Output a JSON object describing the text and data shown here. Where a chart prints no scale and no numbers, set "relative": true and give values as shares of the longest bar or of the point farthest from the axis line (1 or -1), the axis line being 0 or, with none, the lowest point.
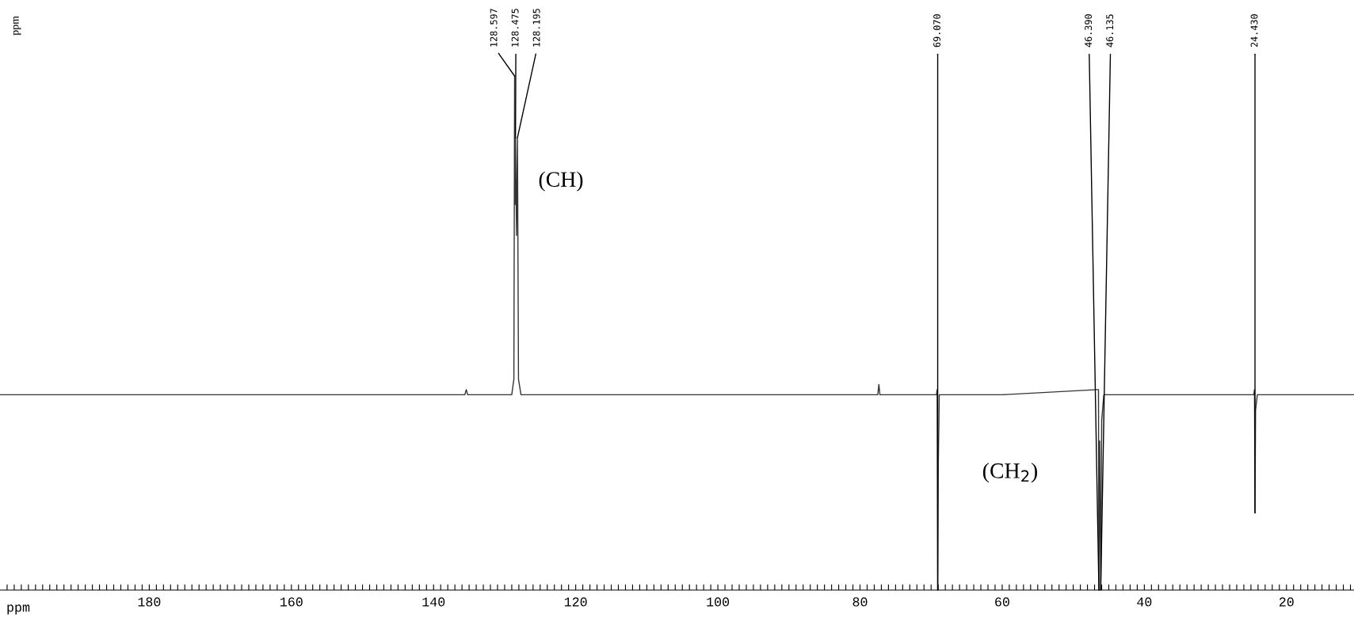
{
  "chart_data": {
    "type": "line",
    "relative": true,
    "xlabel": "ppm",
    "ylabel": "ppm",
    "x": [
      201,
      170,
      135.6,
      135.4,
      135.2,
      129.0,
      128.7,
      128.597,
      128.54,
      128.475,
      128.33,
      128.195,
      128.05,
      127.7,
      100,
      77.5,
      77.35,
      77.2,
      69.25,
      69.15,
      69.07,
      68.98,
      68.85,
      60,
      46.55,
      46.45,
      46.39,
      46.28,
      46.135,
      46.0,
      45.7,
      45.2,
      35,
      24.6,
      24.5,
      24.43,
      24.35,
      24.1,
      10.5
    ],
    "series": [
      {
        "color": "#333333",
        "values": [
          0.38,
          0.38,
          0.38,
          0.39,
          0.38,
          0.38,
          0.41,
          1.0,
          0.75,
          0.88,
          0.69,
          0.88,
          0.41,
          0.38,
          0.38,
          0.38,
          0.4,
          0.38,
          0.38,
          0.39,
          0,
          0.25,
          0.38,
          0.38,
          0.39,
          0.39,
          0,
          0.29,
          0,
          0.33,
          0.38,
          0.38,
          0.38,
          0.38,
          0.39,
          0.15,
          0.35,
          0.38,
          0.38
        ]
      }
    ],
    "xlim": [
      201,
      10.5
    ],
    "xticks": [
      180,
      160,
      140,
      120,
      100,
      80,
      60,
      40,
      20,
      {
        "value": 200,
        "label": null
      },
      {
        "value": 199,
        "label": null
      },
      {
        "value": 198,
        "label": null
      },
      {
        "value": 197,
        "label": null
      },
      {
        "value": 196,
        "label": null
      },
      {
        "value": 195,
        "label": null
      },
      {
        "value": 194,
        "label": null
      },
      {
        "value": 193,
        "label": null
      },
      {
        "value": 192,
        "label": null
      },
      {
        "value": 191,
        "label": null
      },
      {
        "value": 190,
        "label": null
      },
      {
        "value": 189,
        "label": null
      },
      {
        "value": 188,
        "label": null
      },
      {
        "value": 187,
        "label": null
      },
      {
        "value": 186,
        "label": null
      },
      {
        "value": 185,
        "label": null
      },
      {
        "value": 184,
        "label": null
      },
      {
        "value": 183,
        "label": null
      },
      {
        "value": 182,
        "label": null
      },
      {
        "value": 181,
        "label": null
      },
      {
        "value": 179,
        "label": null
      },
      {
        "value": 178,
        "label": null
      },
      {
        "value": 177,
        "label": null
      },
      {
        "value": 176,
        "label": null
      },
      {
        "value": 175,
        "label": null
      },
      {
        "value": 174,
        "label": null
      },
      {
        "value": 173,
        "label": null
      },
      {
        "value": 172,
        "label": null
      },
      {
        "value": 171,
        "label": null
      },
      {
        "value": 170,
        "label": null
      },
      {
        "value": 169,
        "label": null
      },
      {
        "value": 168,
        "label": null
      },
      {
        "value": 167,
        "label": null
      },
      {
        "value": 166,
        "label": null
      },
      {
        "value": 165,
        "label": null
      },
      {
        "value": 164,
        "label": null
      },
      {
        "value": 163,
        "label": null
      },
      {
        "value": 162,
        "label": null
      },
      {
        "value": 161,
        "label": null
      },
      {
        "value": 159,
        "label": null
      },
      {
        "value": 158,
        "label": null
      },
      {
        "value": 157,
        "label": null
      },
      {
        "value": 156,
        "label": null
      },
      {
        "value": 155,
        "label": null
      },
      {
        "value": 154,
        "label": null
      },
      {
        "value": 153,
        "label": null
      },
      {
        "value": 152,
        "label": null
      },
      {
        "value": 151,
        "label": null
      },
      {
        "value": 150,
        "label": null
      },
      {
        "value": 149,
        "label": null
      },
      {
        "value": 148,
        "label": null
      },
      {
        "value": 147,
        "label": null
      },
      {
        "value": 146,
        "label": null
      },
      {
        "value": 145,
        "label": null
      },
      {
        "value": 144,
        "label": null
      },
      {
        "value": 143,
        "label": null
      },
      {
        "value": 142,
        "label": null
      },
      {
        "value": 141,
        "label": null
      },
      {
        "value": 139,
        "label": null
      },
      {
        "value": 138,
        "label": null
      },
      {
        "value": 137,
        "label": null
      },
      {
        "value": 136,
        "label": null
      },
      {
        "value": 135,
        "label": null
      },
      {
        "value": 134,
        "label": null
      },
      {
        "value": 133,
        "label": null
      },
      {
        "value": 132,
        "label": null
      },
      {
        "value": 131,
        "label": null
      },
      {
        "value": 130,
        "label": null
      },
      {
        "value": 129,
        "label": null
      },
      {
        "value": 128,
        "label": null
      },
      {
        "value": 127,
        "label": null
      },
      {
        "value": 126,
        "label": null
      },
      {
        "value": 125,
        "label": null
      },
      {
        "value": 124,
        "label": null
      },
      {
        "value": 123,
        "label": null
      },
      {
        "value": 122,
        "label": null
      },
      {
        "value": 121,
        "label": null
      },
      {
        "value": 119,
        "label": null
      },
      {
        "value": 118,
        "label": null
      },
      {
        "value": 117,
        "label": null
      },
      {
        "value": 116,
        "label": null
      },
      {
        "value": 115,
        "label": null
      },
      {
        "value": 114,
        "label": null
      },
      {
        "value": 113,
        "label": null
      },
      {
        "value": 112,
        "label": null
      },
      {
        "value": 111,
        "label": null
      },
      {
        "value": 110,
        "label": null
      },
      {
        "value": 109,
        "label": null
      },
      {
        "value": 108,
        "label": null
      },
      {
        "value": 107,
        "label": null
      },
      {
        "value": 106,
        "label": null
      },
      {
        "value": 105,
        "label": null
      },
      {
        "value": 104,
        "label": null
      },
      {
        "value": 103,
        "label": null
      },
      {
        "value": 102,
        "label": null
      },
      {
        "value": 101,
        "label": null
      },
      {
        "value": 99,
        "label": null
      },
      {
        "value": 98,
        "label": null
      },
      {
        "value": 97,
        "label": null
      },
      {
        "value": 96,
        "label": null
      },
      {
        "value": 95,
        "label": null
      },
      {
        "value": 94,
        "label": null
      },
      {
        "value": 93,
        "label": null
      },
      {
        "value": 92,
        "label": null
      },
      {
        "value": 91,
        "label": null
      },
      {
        "value": 90,
        "label": null
      },
      {
        "value": 89,
        "label": null
      },
      {
        "value": 88,
        "label": null
      },
      {
        "value": 87,
        "label": null
      },
      {
        "value": 86,
        "label": null
      },
      {
        "value": 85,
        "label": null
      },
      {
        "value": 84,
        "label": null
      },
      {
        "value": 83,
        "label": null
      },
      {
        "value": 82,
        "label": null
      },
      {
        "value": 81,
        "label": null
      },
      {
        "value": 79,
        "label": null
      },
      {
        "value": 78,
        "label": null
      },
      {
        "value": 77,
        "label": null
      },
      {
        "value": 76,
        "label": null
      },
      {
        "value": 75,
        "label": null
      },
      {
        "value": 74,
        "label": null
      },
      {
        "value": 73,
        "label": null
      },
      {
        "value": 72,
        "label": null
      },
      {
        "value": 71,
        "label": null
      },
      {
        "value": 70,
        "label": null
      },
      {
        "value": 69,
        "label": null
      },
      {
        "value": 68,
        "label": null
      },
      {
        "value": 67,
        "label": null
      },
      {
        "value": 66,
        "label": null
      },
      {
        "value": 65,
        "label": null
      },
      {
        "value": 64,
        "label": null
      },
      {
        "value": 63,
        "label": null
      },
      {
        "value": 62,
        "label": null
      },
      {
        "value": 61,
        "label": null
      },
      {
        "value": 59,
        "label": null
      },
      {
        "value": 58,
        "label": null
      },
      {
        "value": 57,
        "label": null
      },
      {
        "value": 56,
        "label": null
      },
      {
        "value": 55,
        "label": null
      },
      {
        "value": 54,
        "label": null
      },
      {
        "value": 53,
        "label": null
      },
      {
        "value": 52,
        "label": null
      },
      {
        "value": 51,
        "label": null
      },
      {
        "value": 50,
        "label": null
      },
      {
        "value": 49,
        "label": null
      },
      {
        "value": 48,
        "label": null
      },
      {
        "value": 47,
        "label": null
      },
      {
        "value": 46,
        "label": null
      },
      {
        "value": 45,
        "label": null
      },
      {
        "value": 44,
        "label": null
      },
      {
        "value": 43,
        "label": null
      },
      {
        "value": 42,
        "label": null
      },
      {
        "value": 41,
        "label": null
      },
      {
        "value": 39,
        "label": null
      },
      {
        "value": 38,
        "label": null
      },
      {
        "value": 37,
        "label": null
      },
      {
        "value": 36,
        "label": null
      },
      {
        "value": 35,
        "label": null
      },
      {
        "value": 34,
        "label": null
      },
      {
        "value": 33,
        "label": null
      },
      {
        "value": 32,
        "label": null
      },
      {
        "value": 31,
        "label": null
      },
      {
        "value": 30,
        "label": null
      },
      {
        "value": 29,
        "label": null
      },
      {
        "value": 28,
        "label": null
      },
      {
        "value": 27,
        "label": null
      },
      {
        "value": 26,
        "label": null
      },
      {
        "value": 25,
        "label": null
      },
      {
        "value": 24,
        "label": null
      },
      {
        "value": 23,
        "label": null
      },
      {
        "value": 22,
        "label": null
      },
      {
        "value": 21,
        "label": null
      },
      {
        "value": 19,
        "label": null
      },
      {
        "value": 18,
        "label": null
      },
      {
        "value": 17,
        "label": null
      },
      {
        "value": 16,
        "label": null
      },
      {
        "value": 15,
        "label": null
      },
      {
        "value": 14,
        "label": null
      },
      {
        "value": 13,
        "label": null
      },
      {
        "value": 12,
        "label": null
      },
      {
        "value": 11,
        "label": null
      }
    ],
    "annotations": [
      {
        "text": "128.597",
        "x": 128.597,
        "y": 1.0
      },
      {
        "text": "128.475",
        "x": 128.475,
        "y": 0.88
      },
      {
        "text": "128.195",
        "x": 128.195,
        "y": 0.88
      },
      {
        "text": "69.070",
        "x": 69.07,
        "y": 0
      },
      {
        "text": "46.390",
        "x": 46.39,
        "y": 0
      },
      {
        "text": "46.135",
        "x": 46.135,
        "y": 0
      },
      {
        "text": "24.430",
        "x": 24.43,
        "y": 0.15
      },
      "(CH)",
      "(CH$_{2}$)"
    ]
  }
}
